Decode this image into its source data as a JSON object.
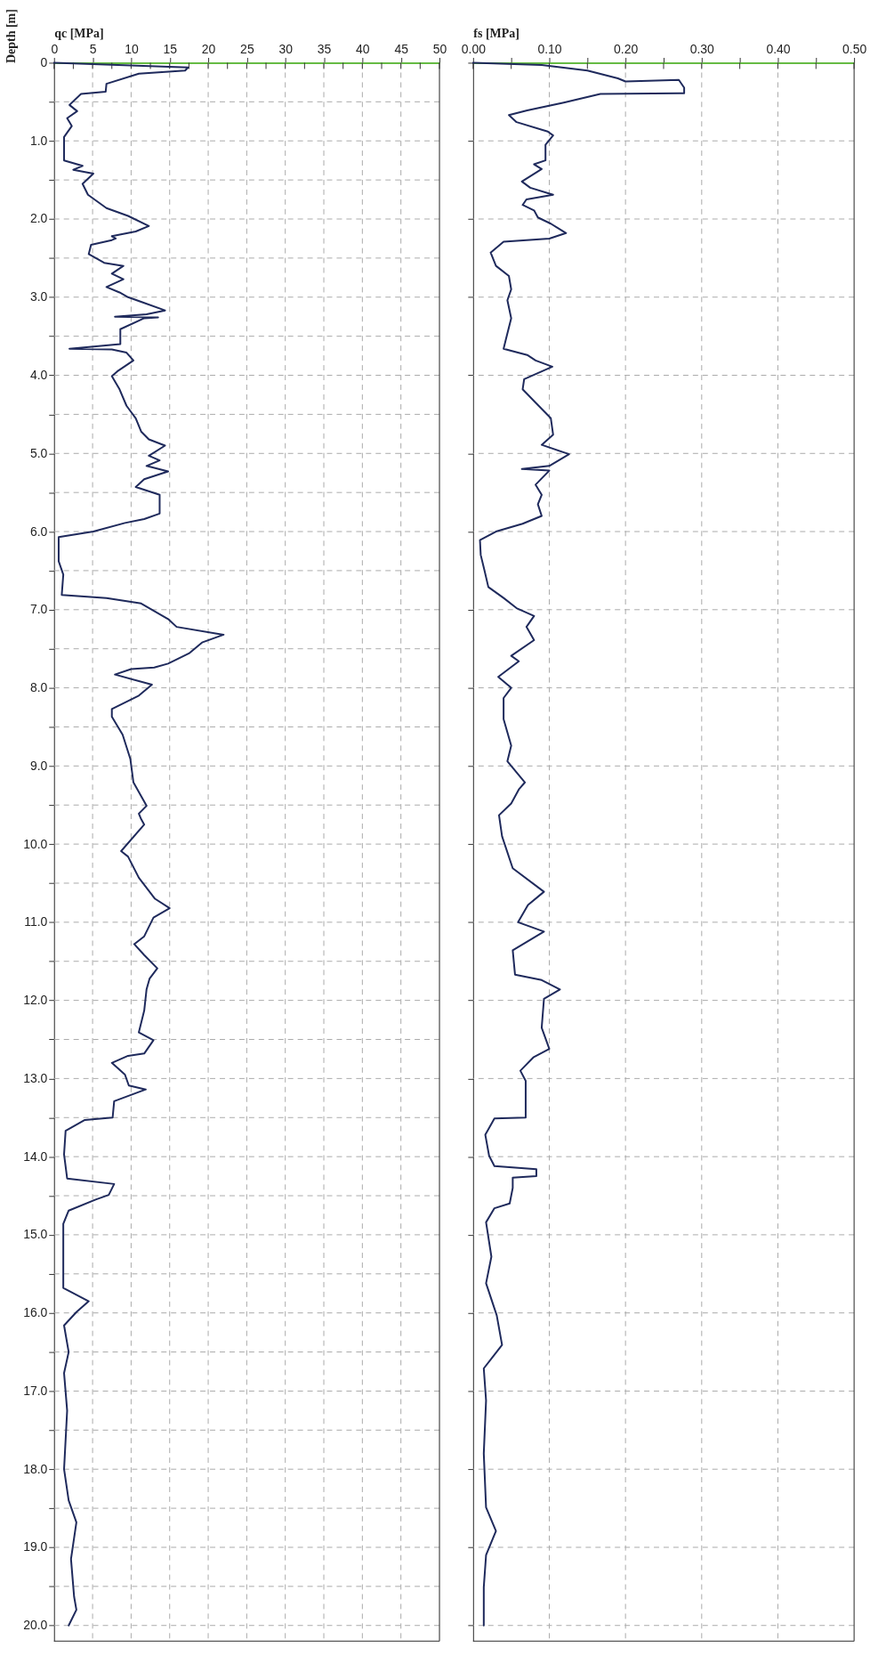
{
  "chart_data": [
    {
      "type": "line",
      "xlabel": "qc [MPa]",
      "ylabel": "Depth [m]",
      "xlim": [
        0,
        50
      ],
      "xticks": [
        0,
        {
          "value": 2.5,
          "label": null
        },
        5,
        {
          "value": 7.5,
          "label": null
        },
        10,
        {
          "value": 12.5,
          "label": null
        },
        15,
        {
          "value": 17.5,
          "label": null
        },
        20,
        {
          "value": 22.5,
          "label": null
        },
        25,
        {
          "value": 27.5,
          "label": null
        },
        30,
        {
          "value": 32.5,
          "label": null
        },
        35,
        {
          "value": 37.5,
          "label": null
        },
        40,
        {
          "value": 42.5,
          "label": null
        },
        45,
        {
          "value": 47.5,
          "label": null
        },
        50
      ],
      "ylim": [
        20.2,
        0
      ],
      "yticks": [
        0,
        {
          "value": 0.5,
          "label": null
        },
        {
          "value": 1,
          "label": "1.0"
        },
        {
          "value": 1.5,
          "label": null
        },
        {
          "value": 2,
          "label": "2.0"
        },
        {
          "value": 2.5,
          "label": null
        },
        {
          "value": 3,
          "label": "3.0"
        },
        {
          "value": 3.5,
          "label": null
        },
        {
          "value": 4,
          "label": "4.0"
        },
        {
          "value": 4.5,
          "label": null
        },
        {
          "value": 5,
          "label": "5.0"
        },
        {
          "value": 5.5,
          "label": null
        },
        {
          "value": 6,
          "label": "6.0"
        },
        {
          "value": 6.5,
          "label": null
        },
        {
          "value": 7,
          "label": "7.0"
        },
        {
          "value": 7.5,
          "label": null
        },
        {
          "value": 8,
          "label": "8.0"
        },
        {
          "value": 8.5,
          "label": null
        },
        {
          "value": 9,
          "label": "9.0"
        },
        {
          "value": 9.5,
          "label": null
        },
        {
          "value": 10,
          "label": "10.0"
        },
        {
          "value": 10.5,
          "label": null
        },
        {
          "value": 11,
          "label": "11.0"
        },
        {
          "value": 11.5,
          "label": null
        },
        {
          "value": 12,
          "label": "12.0"
        },
        {
          "value": 12.5,
          "label": null
        },
        {
          "value": 13,
          "label": "13.0"
        },
        {
          "value": 13.5,
          "label": null
        },
        {
          "value": 14,
          "label": "14.0"
        },
        {
          "value": 14.5,
          "label": null
        },
        {
          "value": 15,
          "label": "15.0"
        },
        {
          "value": 15.5,
          "label": null
        },
        {
          "value": 16,
          "label": "16.0"
        },
        {
          "value": 16.5,
          "label": null
        },
        {
          "value": 17,
          "label": "17.0"
        },
        {
          "value": 17.5,
          "label": null
        },
        {
          "value": 18,
          "label": "18.0"
        },
        {
          "value": 18.5,
          "label": null
        },
        {
          "value": 19,
          "label": "19.0"
        },
        {
          "value": 19.5,
          "label": null
        },
        {
          "value": 20,
          "label": "20.0"
        }
      ],
      "grid": true,
      "line_style": "solid",
      "marker": "none",
      "series": [
        {
          "color": "#1f2a5c",
          "x": [
            0,
            17.4,
            17.0,
            11,
            6.8,
            6.7,
            3.5,
            2.0,
            3.0,
            1.7,
            2.3,
            1.3,
            1.3,
            3.7,
            2.5,
            5.1,
            3.7,
            4.4,
            6.8,
            9.6,
            12.3,
            10.6,
            7.5,
            8.0,
            7.5,
            4.8,
            4.5,
            6.5,
            9.0,
            7.5,
            9.0,
            6.8,
            8.5,
            9.6,
            11.3,
            14.4,
            12.0,
            7.9,
            13.5,
            11.7,
            8.6,
            8.6,
            2.0,
            7.5,
            9.4,
            10.3,
            8.2,
            7.5,
            8.5,
            9.4,
            10.6,
            11.3,
            12.3,
            14.4,
            12.3,
            13.7,
            12.0,
            14.8,
            11.7,
            10.6,
            13.7,
            13.7,
            11.7,
            9.2,
            5.1,
            0.6,
            0.6,
            1.2,
            1.0,
            6.8,
            11.3,
            14.8,
            15.9,
            22.0,
            19.2,
            17.5,
            14.8,
            13.0,
            10.0,
            7.9,
            12.7,
            11.0,
            7.5,
            7.5,
            8.9,
            9.9,
            10.3,
            12.0,
            11.0,
            11.3,
            11.7,
            8.7,
            9.6,
            11.0,
            13.1,
            15.0,
            12.9,
            11.7,
            10.4,
            11.7,
            13.4,
            12.4,
            12.0,
            11.7,
            11.0,
            12.9,
            11.7,
            9.6,
            7.5,
            9.2,
            9.7,
            11.9,
            7.8,
            7.6,
            4.0,
            1.5,
            1.3,
            1.7,
            7.8,
            7.1,
            5.4,
            1.9,
            1.2,
            1.2,
            4.5,
            2.9,
            1.3,
            1.9,
            1.3,
            1.7,
            1.3,
            1.9,
            2.9,
            2.2,
            2.6,
            2.9,
            1.9
          ],
          "values": [
            0,
            0.06,
            0.1,
            0.14,
            0.27,
            0.37,
            0.4,
            0.54,
            0.62,
            0.71,
            0.81,
            0.95,
            1.25,
            1.32,
            1.37,
            1.42,
            1.55,
            1.69,
            1.86,
            1.96,
            2.09,
            2.16,
            2.22,
            2.25,
            2.27,
            2.33,
            2.45,
            2.56,
            2.6,
            2.7,
            2.77,
            2.87,
            2.94,
            3.0,
            3.06,
            3.17,
            3.22,
            3.25,
            3.26,
            3.27,
            3.41,
            3.6,
            3.66,
            3.67,
            3.71,
            3.81,
            3.95,
            4.01,
            4.18,
            4.39,
            4.55,
            4.72,
            4.82,
            4.9,
            5.03,
            5.09,
            5.16,
            5.23,
            5.33,
            5.43,
            5.53,
            5.77,
            5.84,
            5.89,
            6.0,
            6.07,
            6.38,
            6.55,
            6.81,
            6.85,
            6.92,
            7.12,
            7.22,
            7.32,
            7.42,
            7.56,
            7.69,
            7.74,
            7.76,
            7.83,
            7.96,
            8.1,
            8.27,
            8.37,
            8.6,
            8.91,
            9.21,
            9.51,
            9.61,
            9.68,
            9.75,
            10.09,
            10.16,
            10.43,
            10.7,
            10.82,
            10.94,
            11.18,
            11.28,
            11.42,
            11.59,
            11.72,
            11.86,
            12.13,
            12.41,
            12.51,
            12.68,
            12.71,
            12.8,
            12.95,
            13.09,
            13.14,
            13.29,
            13.5,
            13.53,
            13.67,
            13.97,
            14.28,
            14.35,
            14.49,
            14.55,
            14.69,
            14.86,
            15.68,
            15.85,
            15.99,
            16.16,
            16.5,
            16.77,
            17.25,
            18.0,
            18.4,
            18.68,
            19.15,
            19.63,
            19.8,
            20.0
          ]
        }
      ]
    },
    {
      "type": "line",
      "xlabel": "fs [MPa]",
      "tick_labels": "x",
      "xlim": [
        0,
        0.5
      ],
      "xticks": [
        {
          "value": 0,
          "label": "0.00"
        },
        {
          "value": 0.05,
          "label": null
        },
        {
          "value": 0.1,
          "label": "0.10"
        },
        {
          "value": 0.15,
          "label": null
        },
        {
          "value": 0.2,
          "label": "0.20"
        },
        {
          "value": 0.25,
          "label": null
        },
        {
          "value": 0.3,
          "label": "0.30"
        },
        {
          "value": 0.35,
          "label": null
        },
        {
          "value": 0.4,
          "label": "0.40"
        },
        {
          "value": 0.45,
          "label": null
        },
        {
          "value": 0.5,
          "label": "0.50"
        }
      ],
      "ylim": [
        20.2,
        0
      ],
      "yticks": [
        {
          "value": 0,
          "label": null
        },
        {
          "value": 1,
          "label": null
        },
        {
          "value": 2,
          "label": null
        },
        {
          "value": 3,
          "label": null
        },
        {
          "value": 4,
          "label": null
        },
        {
          "value": 5,
          "label": null
        },
        {
          "value": 6,
          "label": null
        },
        {
          "value": 7,
          "label": null
        },
        {
          "value": 8,
          "label": null
        },
        {
          "value": 9,
          "label": null
        },
        {
          "value": 10,
          "label": null
        },
        {
          "value": 11,
          "label": null
        },
        {
          "value": 12,
          "label": null
        },
        {
          "value": 13,
          "label": null
        },
        {
          "value": 14,
          "label": null
        },
        {
          "value": 15,
          "label": null
        },
        {
          "value": 16,
          "label": null
        },
        {
          "value": 17,
          "label": null
        },
        {
          "value": 18,
          "label": null
        },
        {
          "value": 19,
          "label": null
        },
        {
          "value": 20,
          "label": null
        }
      ],
      "grid": true,
      "line_style": "solid",
      "marker": "none",
      "series": [
        {
          "color": "#1f2a5c",
          "x": [
            0,
            0.09,
            0.15,
            0.19,
            0.2,
            0.27,
            0.277,
            0.277,
            0.167,
            0.119,
            0.071,
            0.047,
            0.057,
            0.098,
            0.105,
            0.095,
            0.095,
            0.08,
            0.09,
            0.064,
            0.075,
            0.105,
            0.07,
            0.065,
            0.08,
            0.085,
            0.102,
            0.122,
            0.1,
            0.04,
            0.023,
            0.03,
            0.047,
            0.05,
            0.045,
            0.05,
            0.043,
            0.04,
            0.071,
            0.082,
            0.104,
            0.067,
            0.065,
            0.082,
            0.102,
            0.105,
            0.09,
            0.126,
            0.1,
            0.064,
            0.1,
            0.082,
            0.09,
            0.085,
            0.09,
            0.065,
            0.03,
            0.009,
            0.01,
            0.015,
            0.02,
            0.04,
            0.057,
            0.08,
            0.07,
            0.08,
            0.05,
            0.06,
            0.033,
            0.05,
            0.04,
            0.04,
            0.05,
            0.045,
            0.068,
            0.06,
            0.05,
            0.034,
            0.038,
            0.052,
            0.093,
            0.072,
            0.059,
            0.093,
            0.052,
            0.055,
            0.09,
            0.114,
            0.093,
            0.09,
            0.1,
            0.079,
            0.062,
            0.069,
            0.069,
            0.028,
            0.016,
            0.021,
            0.028,
            0.083,
            0.083,
            0.052,
            0.052,
            0.048,
            0.028,
            0.017,
            0.024,
            0.017,
            0.031,
            0.038,
            0.014,
            0.017,
            0.014,
            0.017,
            0.03,
            0.017,
            0.014,
            0.014
          ],
          "values": [
            0,
            0.03,
            0.1,
            0.2,
            0.24,
            0.22,
            0.32,
            0.39,
            0.4,
            0.51,
            0.61,
            0.67,
            0.76,
            0.88,
            0.93,
            1.05,
            1.25,
            1.3,
            1.36,
            1.52,
            1.6,
            1.69,
            1.75,
            1.82,
            1.89,
            1.98,
            2.06,
            2.18,
            2.25,
            2.29,
            2.43,
            2.6,
            2.73,
            2.9,
            3.04,
            3.27,
            3.54,
            3.66,
            3.74,
            3.81,
            3.89,
            4.05,
            4.18,
            4.35,
            4.55,
            4.76,
            4.89,
            5.01,
            5.16,
            5.2,
            5.22,
            5.4,
            5.53,
            5.65,
            5.8,
            5.9,
            6.0,
            6.11,
            6.3,
            6.5,
            6.71,
            6.85,
            6.98,
            7.08,
            7.22,
            7.39,
            7.59,
            7.66,
            7.86,
            8.0,
            8.13,
            8.4,
            8.74,
            8.94,
            9.21,
            9.3,
            9.48,
            9.63,
            9.9,
            10.31,
            10.61,
            10.78,
            11.0,
            11.12,
            11.36,
            11.67,
            11.74,
            11.86,
            11.98,
            12.35,
            12.62,
            12.73,
            12.9,
            13.03,
            13.5,
            13.51,
            13.72,
            13.99,
            14.12,
            14.16,
            14.25,
            14.27,
            14.4,
            14.6,
            14.66,
            14.84,
            15.28,
            15.62,
            16.03,
            16.41,
            16.71,
            17.12,
            17.8,
            18.49,
            18.79,
            19.1,
            19.51,
            20.0
          ]
        }
      ]
    }
  ]
}
